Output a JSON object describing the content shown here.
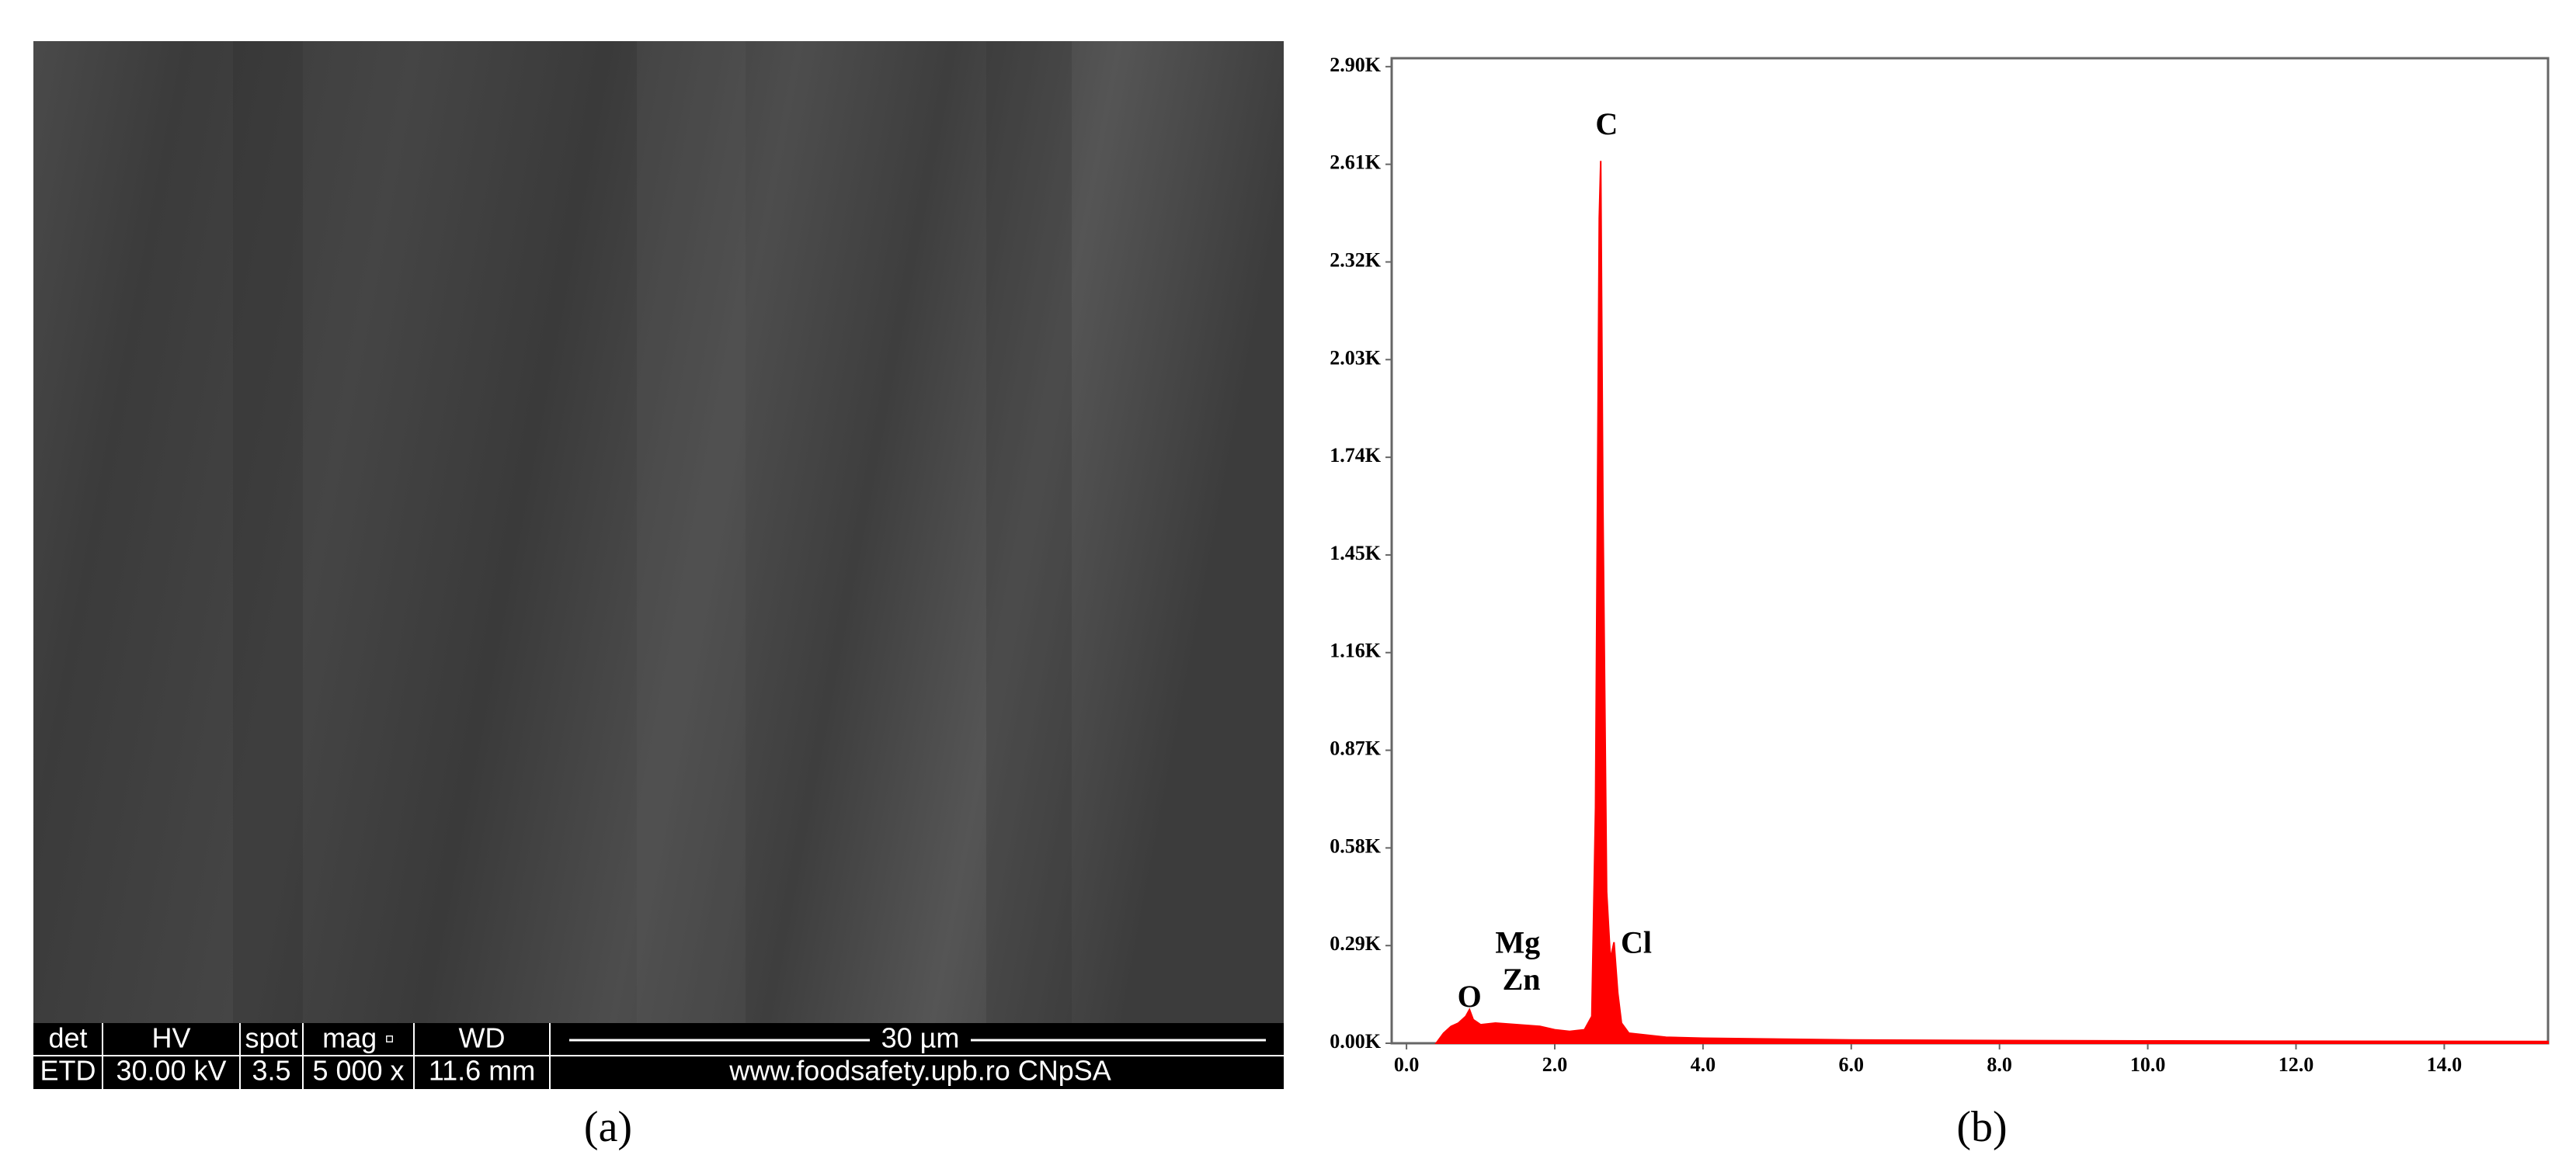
{
  "panel_a": {
    "info_bar": {
      "headers": [
        "det",
        "HV",
        "spot",
        "mag ▫",
        "WD"
      ],
      "values": [
        "ETD",
        "30.00 kV",
        "3.5",
        "5 000 x",
        "11.6 mm"
      ],
      "scale_bar": "30 µm",
      "footer": "www.foodsafety.upb.ro CNpSA"
    },
    "caption": "(a)"
  },
  "chart_data": {
    "type": "area",
    "caption": "(b)",
    "color": "#ff0000",
    "x": [
      0.4,
      0.5,
      0.6,
      0.7,
      0.8,
      0.85,
      0.9,
      1.0,
      1.2,
      1.5,
      1.8,
      2.0,
      2.2,
      2.4,
      2.5,
      2.55,
      2.6,
      2.62,
      2.65,
      2.7,
      2.75,
      2.8,
      2.85,
      2.9,
      3.0,
      3.5,
      4.0,
      6.0,
      8.0,
      10.0,
      12.0,
      15.4
    ],
    "values": [
      0,
      30,
      50,
      60,
      80,
      100,
      70,
      55,
      60,
      55,
      50,
      40,
      35,
      40,
      80,
      700,
      2450,
      2620,
      1600,
      450,
      250,
      300,
      150,
      60,
      30,
      18,
      15,
      10,
      8,
      7,
      6,
      5
    ],
    "xlim": [
      -0.2,
      15.4
    ],
    "ylim": [
      0,
      2925
    ],
    "xticks": [
      {
        "value": 0,
        "label": "0.0"
      },
      {
        "value": 2,
        "label": "2.0"
      },
      {
        "value": 4,
        "label": "4.0"
      },
      {
        "value": 6,
        "label": "6.0"
      },
      {
        "value": 8,
        "label": "8.0"
      },
      {
        "value": 10,
        "label": "10.0"
      },
      {
        "value": 12,
        "label": "12.0"
      },
      {
        "value": 14,
        "label": "14.0"
      }
    ],
    "yticks": [
      {
        "value": 0,
        "label": "0.00K"
      },
      {
        "value": 290,
        "label": "0.29K"
      },
      {
        "value": 580,
        "label": "0.58K"
      },
      {
        "value": 870,
        "label": "0.87K"
      },
      {
        "value": 1160,
        "label": "1.16K"
      },
      {
        "value": 1450,
        "label": "1.45K"
      },
      {
        "value": 1740,
        "label": "1.74K"
      },
      {
        "value": 2030,
        "label": "2.03K"
      },
      {
        "value": 2320,
        "label": "2.32K"
      },
      {
        "value": 2610,
        "label": "2.61K"
      },
      {
        "value": 2900,
        "label": "2.90K"
      }
    ],
    "annotations": [
      {
        "text": "C",
        "x": 2.7,
        "y": 2720
      },
      {
        "text": "O",
        "x": 0.85,
        "y": 130
      },
      {
        "text": "Mg",
        "x": 1.5,
        "y": 290
      },
      {
        "text": "Zn",
        "x": 1.55,
        "y": 180
      },
      {
        "text": "Cl",
        "x": 3.1,
        "y": 290
      }
    ]
  }
}
